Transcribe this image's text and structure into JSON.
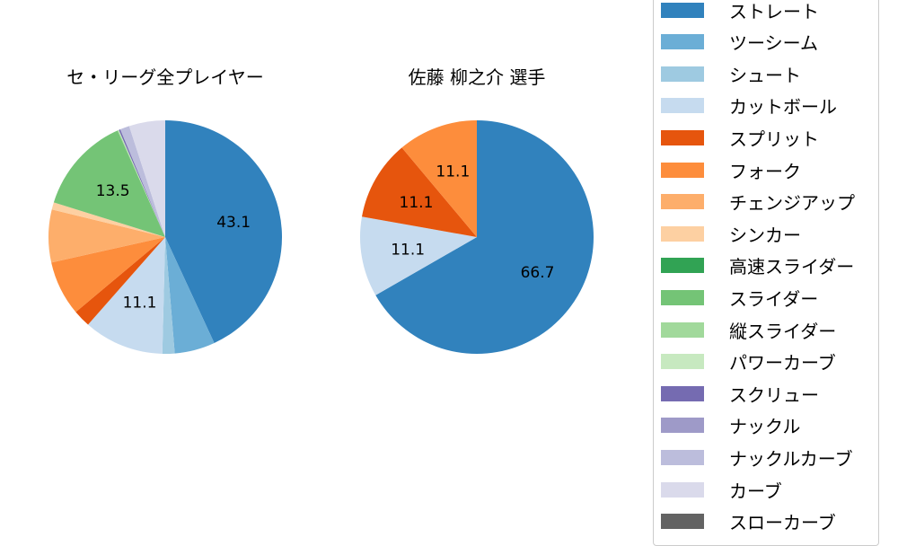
{
  "chart_data": [
    {
      "type": "pie",
      "title": "セ・リーグ全プレイヤー",
      "start_angle": 90,
      "direction": "clockwise",
      "slices": [
        {
          "label": "ストレート",
          "value": 43.1,
          "color": "#3182bd",
          "show_label": true
        },
        {
          "label": "ツーシーム",
          "value": 5.6,
          "color": "#6baed6",
          "show_label": false
        },
        {
          "label": "シュート",
          "value": 1.7,
          "color": "#9ecae1",
          "show_label": false
        },
        {
          "label": "カットボール",
          "value": 11.1,
          "color": "#c6dbef",
          "show_label": true
        },
        {
          "label": "スプリット",
          "value": 2.4,
          "color": "#e6550d",
          "show_label": false
        },
        {
          "label": "フォーク",
          "value": 7.6,
          "color": "#fd8d3c",
          "show_label": false
        },
        {
          "label": "チェンジアップ",
          "value": 7.3,
          "color": "#fdae6b",
          "show_label": false
        },
        {
          "label": "シンカー",
          "value": 1.0,
          "color": "#fdd0a2",
          "show_label": false
        },
        {
          "label": "スライダー",
          "value": 13.5,
          "color": "#74c476",
          "show_label": true
        },
        {
          "label": "縦スライダー",
          "value": 0.1,
          "color": "#a1d99b",
          "show_label": false
        },
        {
          "label": "パワーカーブ",
          "value": 0.1,
          "color": "#c7e9c0",
          "show_label": false
        },
        {
          "label": "スクリュー",
          "value": 0.2,
          "color": "#756bb1",
          "show_label": false
        },
        {
          "label": "ナックルカーブ",
          "value": 1.3,
          "color": "#bcbddc",
          "show_label": false
        },
        {
          "label": "カーブ",
          "value": 5.0,
          "color": "#dadaeb",
          "show_label": false
        }
      ]
    },
    {
      "type": "pie",
      "title": "佐藤 柳之介  選手",
      "start_angle": 90,
      "direction": "clockwise",
      "slices": [
        {
          "label": "ストレート",
          "value": 66.7,
          "color": "#3182bd",
          "show_label": true
        },
        {
          "label": "カットボール",
          "value": 11.1,
          "color": "#c6dbef",
          "show_label": true
        },
        {
          "label": "スプリット",
          "value": 11.1,
          "color": "#e6550d",
          "show_label": true
        },
        {
          "label": "フォーク",
          "value": 11.1,
          "color": "#fd8d3c",
          "show_label": true
        }
      ]
    }
  ],
  "legend": {
    "position": "right",
    "items": [
      {
        "label": "ストレート",
        "color": "#3182bd"
      },
      {
        "label": "ツーシーム",
        "color": "#6baed6"
      },
      {
        "label": "シュート",
        "color": "#9ecae1"
      },
      {
        "label": "カットボール",
        "color": "#c6dbef"
      },
      {
        "label": "スプリット",
        "color": "#e6550d"
      },
      {
        "label": "フォーク",
        "color": "#fd8d3c"
      },
      {
        "label": "チェンジアップ",
        "color": "#fdae6b"
      },
      {
        "label": "シンカー",
        "color": "#fdd0a2"
      },
      {
        "label": "高速スライダー",
        "color": "#31a354"
      },
      {
        "label": "スライダー",
        "color": "#74c476"
      },
      {
        "label": "縦スライダー",
        "color": "#a1d99b"
      },
      {
        "label": "パワーカーブ",
        "color": "#c7e9c0"
      },
      {
        "label": "スクリュー",
        "color": "#756bb1"
      },
      {
        "label": "ナックル",
        "color": "#9e9ac8"
      },
      {
        "label": "ナックルカーブ",
        "color": "#bcbddc"
      },
      {
        "label": "カーブ",
        "color": "#dadaeb"
      },
      {
        "label": "スローカーブ",
        "color": "#636363"
      }
    ]
  }
}
